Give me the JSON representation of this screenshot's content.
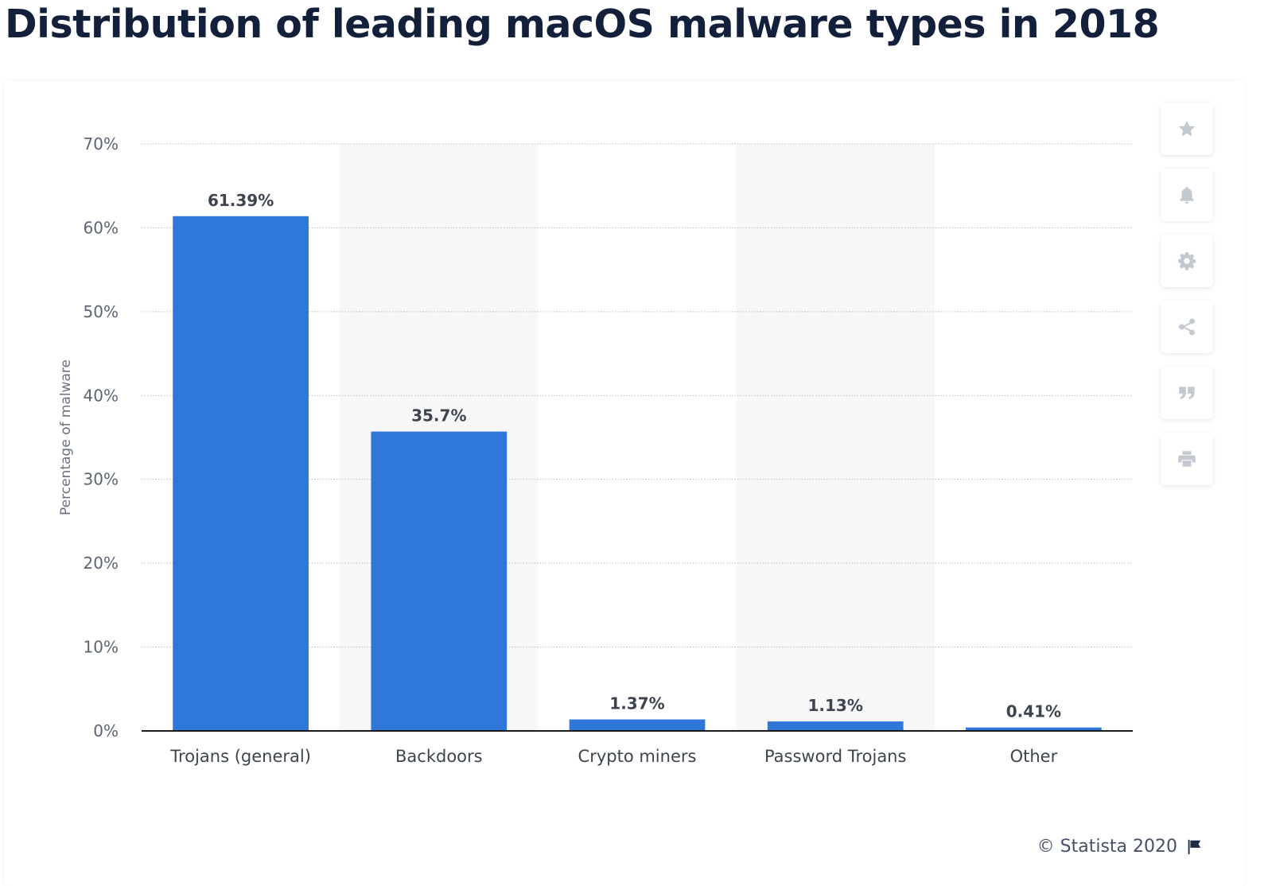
{
  "page": {
    "title": "Distribution of leading macOS malware types in 2018",
    "source": "© Statista 2020"
  },
  "toolbar": {
    "icons": [
      "star-icon",
      "bell-icon",
      "gear-icon",
      "share-icon",
      "quote-icon",
      "print-icon"
    ]
  },
  "colors": {
    "bar": "#2f78d9",
    "title": "#13203c",
    "band": "#f7f7f8",
    "icon": "#c3c9d1"
  },
  "chart_data": {
    "type": "bar",
    "title": "Distribution of leading macOS malware types in 2018",
    "xlabel": "",
    "ylabel": "Percentage of malware",
    "categories": [
      "Trojans (general)",
      "Backdoors",
      "Crypto miners",
      "Password Trojans",
      "Other"
    ],
    "values": [
      61.39,
      35.7,
      1.37,
      1.13,
      0.41
    ],
    "value_labels": [
      "61.39%",
      "35.7%",
      "1.37%",
      "1.13%",
      "0.41%"
    ],
    "ylim": [
      0,
      70
    ],
    "yticks": [
      0,
      10,
      20,
      30,
      40,
      50,
      60,
      70
    ],
    "ytick_labels": [
      "0%",
      "10%",
      "20%",
      "30%",
      "40%",
      "50%",
      "60%",
      "70%"
    ],
    "grid": true,
    "legend": "none"
  }
}
